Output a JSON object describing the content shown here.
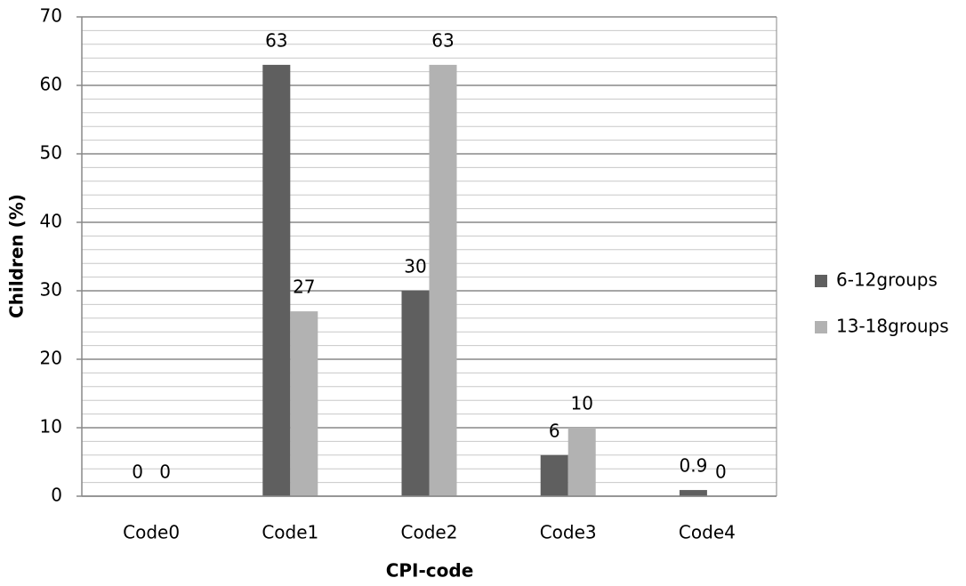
{
  "chart_data": {
    "type": "bar",
    "xlabel": "CPI-code",
    "ylabel": "Children (%)",
    "categories": [
      "Code0",
      "Code1",
      "Code2",
      "Code3",
      "Code4"
    ],
    "series": [
      {
        "name": "6-12groups",
        "color": "#5f5f5f",
        "values": [
          0,
          63,
          30,
          6,
          0.9
        ]
      },
      {
        "name": "13-18groups",
        "color": "#b2b2b2",
        "values": [
          0,
          27,
          63,
          10,
          0
        ]
      }
    ],
    "ylim": [
      0,
      70
    ],
    "yticks": [
      0,
      10,
      20,
      30,
      40,
      50,
      60,
      70
    ],
    "yminorticks": [
      2,
      4,
      6,
      8,
      12,
      14,
      16,
      18,
      22,
      24,
      26,
      28,
      32,
      34,
      36,
      38,
      42,
      44,
      46,
      48,
      52,
      54,
      56,
      58,
      62,
      64,
      66,
      68
    ],
    "grid": true,
    "legend": "right"
  }
}
